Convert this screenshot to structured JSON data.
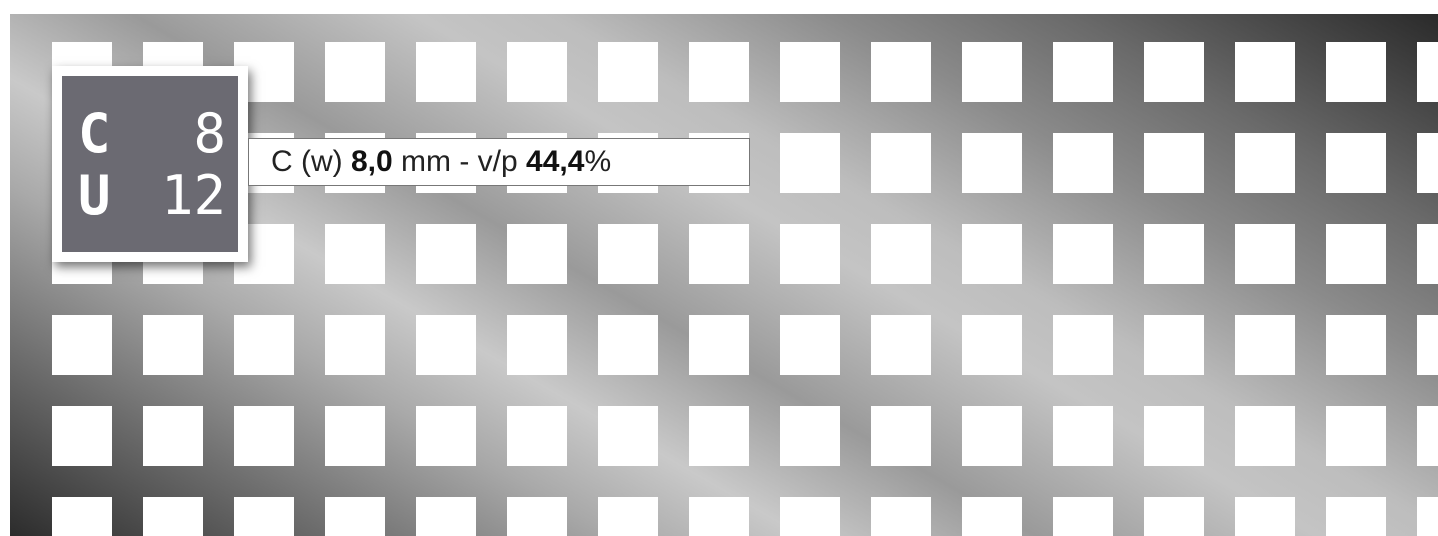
{
  "badge": {
    "shape_letter": "C",
    "shape_size": "8",
    "pattern_letter": "U",
    "pattern_pitch": "12"
  },
  "spec": {
    "prefix": "C (w) ",
    "diameter_value": "8,0",
    "middle": " mm - v/p ",
    "open_area_value": "44,4",
    "suffix": "%"
  },
  "colors": {
    "badge_background": "#6b6a72",
    "badge_text": "#ffffff",
    "hole": "#ffffff"
  }
}
